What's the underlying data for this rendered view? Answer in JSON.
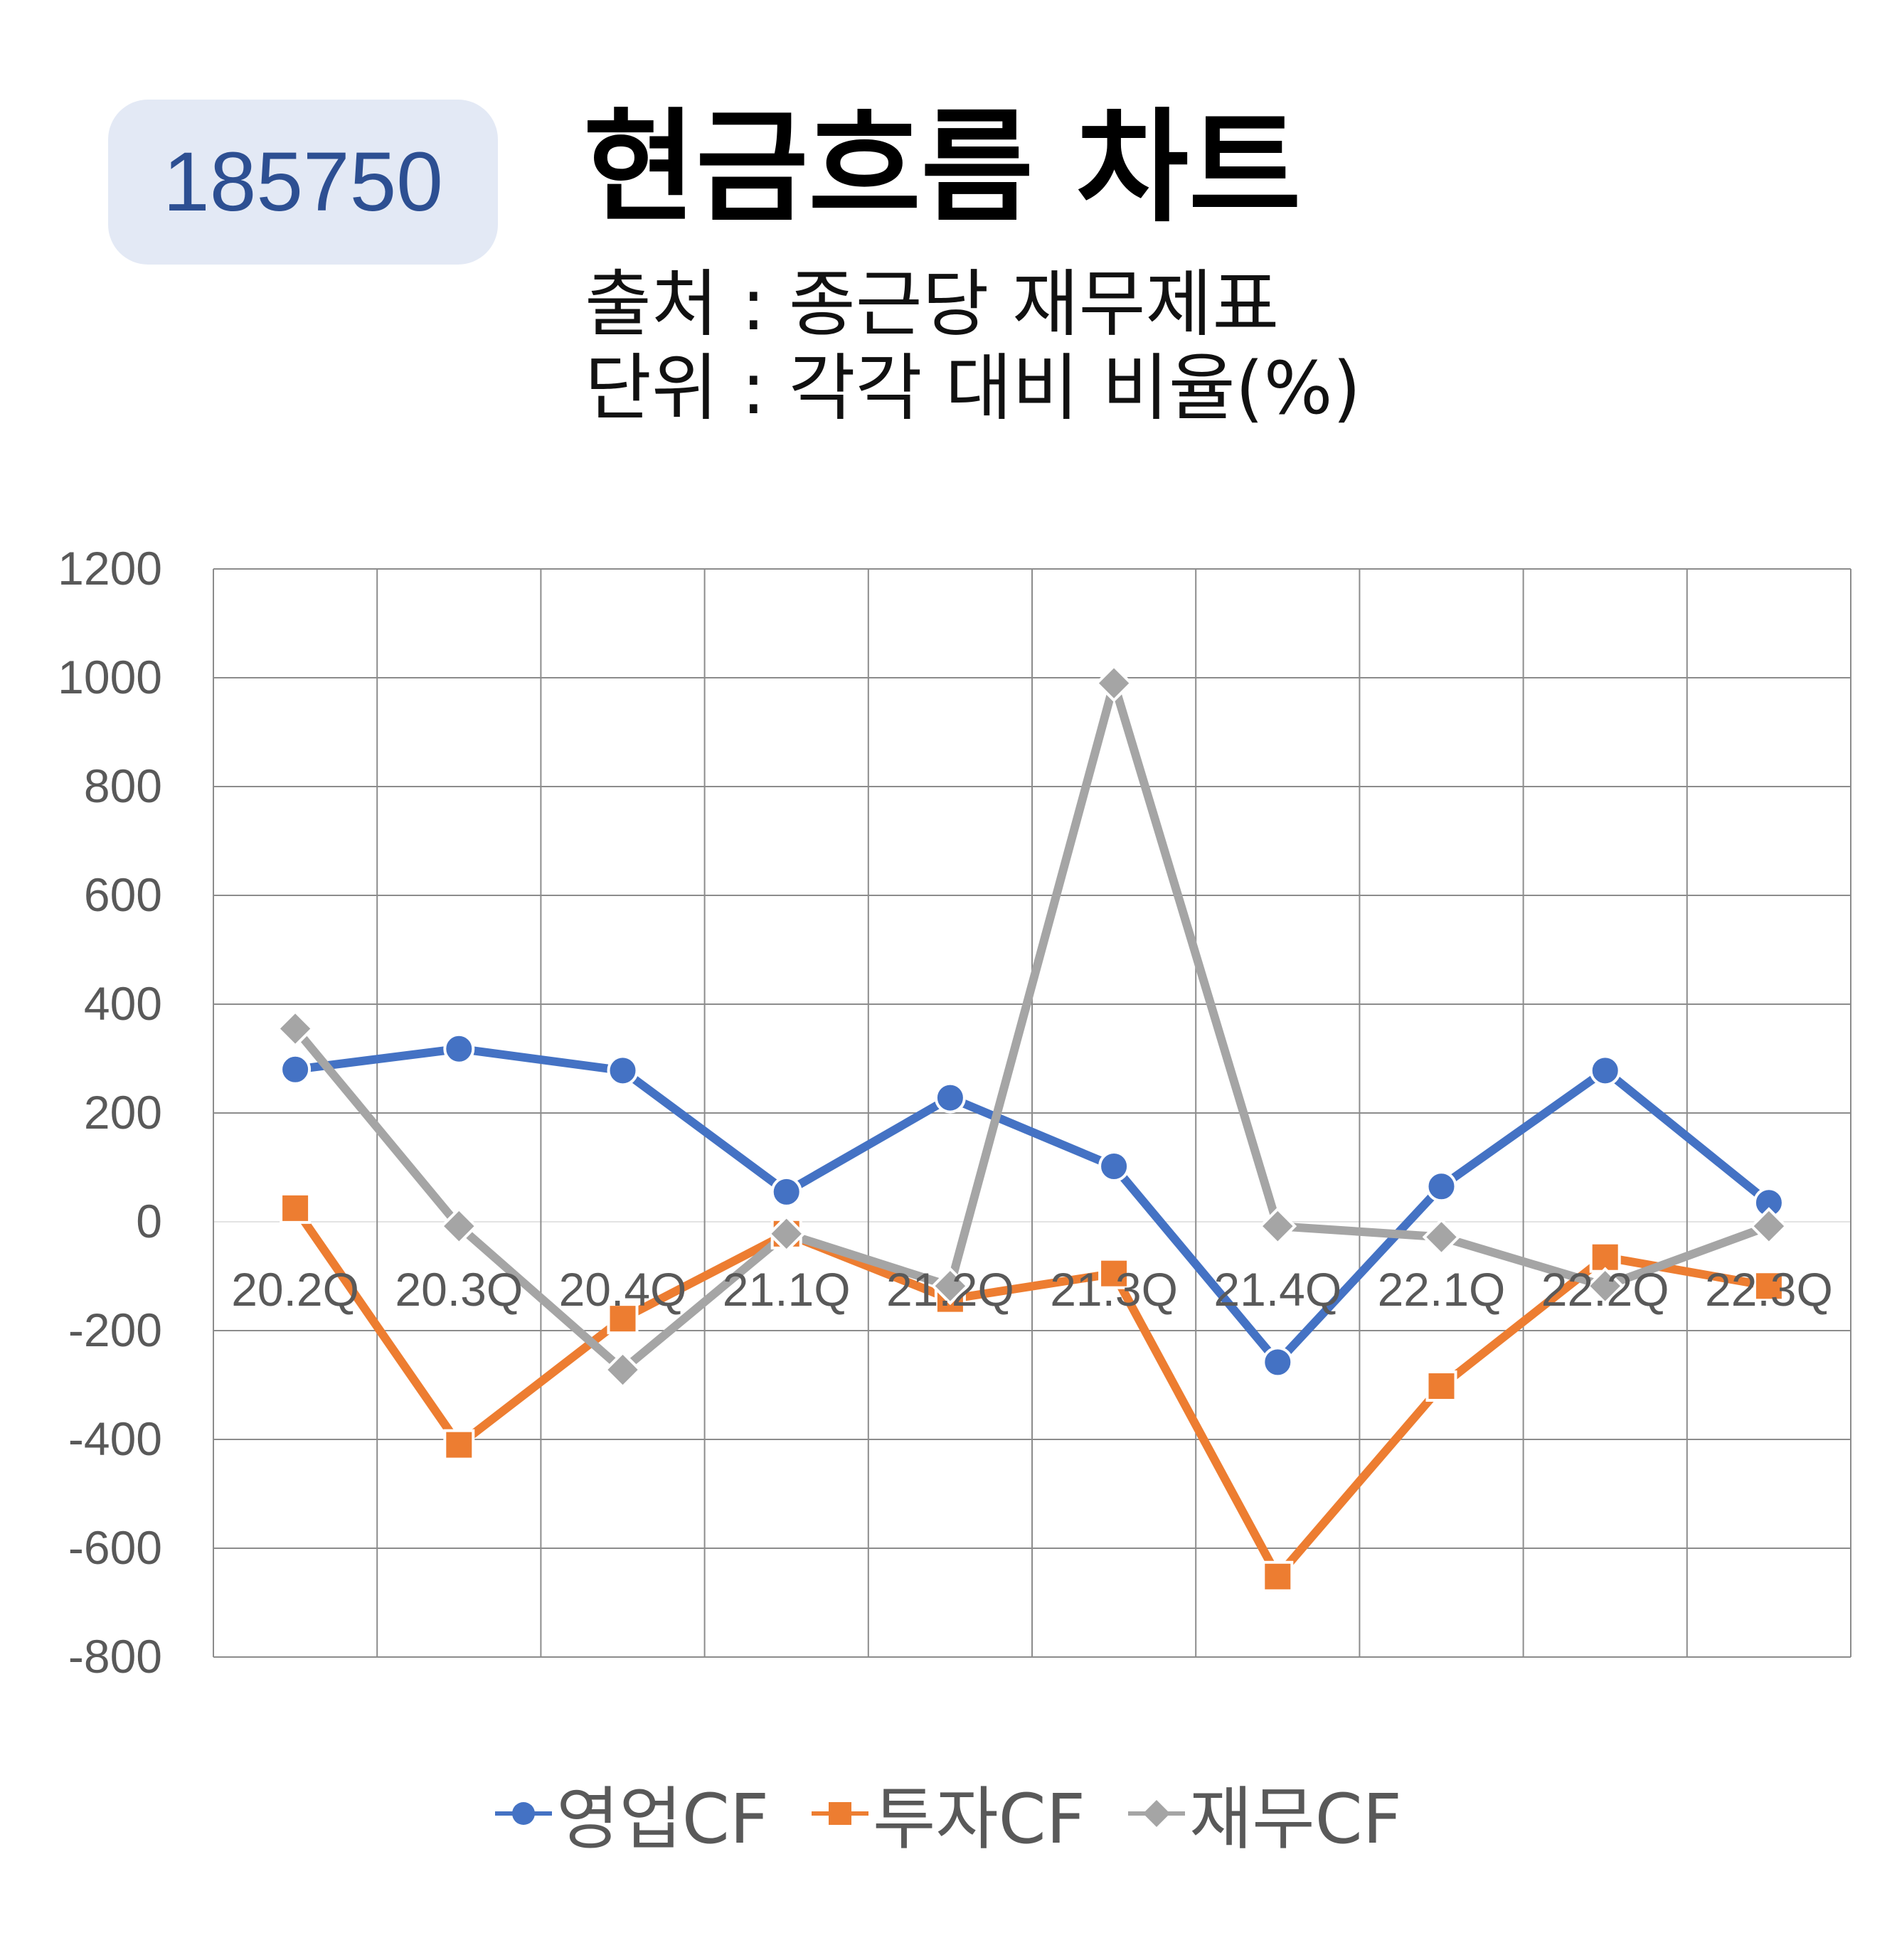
{
  "header": {
    "code": "185750",
    "title": "현금흐름 차트",
    "source": "출처 : 종근당 재무제표",
    "unit": "단위 : 각각 대비 비율(%)"
  },
  "chart_data": {
    "type": "line",
    "title": "현금흐름 차트",
    "categories": [
      "20.2Q",
      "20.3Q",
      "20.4Q",
      "21.1Q",
      "21.2Q",
      "21.3Q",
      "21.4Q",
      "22.1Q",
      "22.2Q",
      "22.3Q"
    ],
    "ylim": [
      -800,
      1200
    ],
    "yticks": [
      1200,
      1000,
      800,
      600,
      400,
      200,
      0,
      -200,
      -400,
      -600,
      -800
    ],
    "grid": true,
    "legend_position": "bottom",
    "series": [
      {
        "name": "영업CF",
        "color": "#4472c4",
        "marker": "circle",
        "values": [
          280,
          318,
          278,
          55,
          228,
          102,
          -258,
          65,
          278,
          35
        ]
      },
      {
        "name": "투자CF",
        "color": "#ed7d31",
        "marker": "square",
        "values": [
          25,
          -410,
          -178,
          -22,
          -142,
          -95,
          -652,
          -302,
          -65,
          -118
        ]
      },
      {
        "name": "재무CF",
        "color": "#a5a5a5",
        "marker": "diamond",
        "values": [
          355,
          -8,
          -272,
          -22,
          -118,
          990,
          -8,
          -28,
          -118,
          -8
        ]
      }
    ]
  }
}
